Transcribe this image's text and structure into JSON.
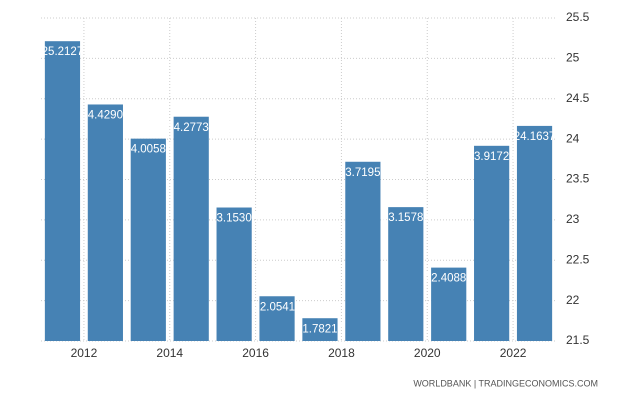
{
  "chart_data": {
    "type": "bar",
    "categories": [
      null,
      "2012",
      null,
      "2014",
      null,
      "2016",
      null,
      "2018",
      null,
      "2020",
      null,
      "2022"
    ],
    "values": [
      25.2127,
      24.42906,
      24.00588,
      24.27739,
      23.15306,
      22.05411,
      21.78212,
      23.71959,
      23.15785,
      22.40888,
      23.91724,
      24.1637
    ],
    "color": "#4682b4",
    "ylim": [
      21.5,
      25.5
    ],
    "yticks": [
      21.5,
      22,
      22.5,
      23,
      23.5,
      24,
      24.5,
      25,
      25.5
    ],
    "grid": true,
    "source": "WORLDBANK | TRADINGECONOMICS.COM"
  }
}
